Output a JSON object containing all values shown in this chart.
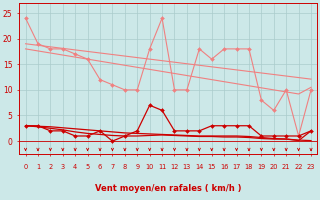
{
  "x": [
    0,
    1,
    2,
    3,
    4,
    5,
    6,
    7,
    8,
    9,
    10,
    11,
    12,
    13,
    14,
    15,
    16,
    17,
    18,
    19,
    20,
    21,
    22,
    23
  ],
  "series": [
    {
      "name": "rafales_max",
      "color": "#f08080",
      "linewidth": 0.8,
      "marker": "D",
      "markersize": 2.0,
      "values": [
        24,
        19,
        18,
        18,
        17,
        16,
        12,
        11,
        10,
        10,
        18,
        24,
        10,
        10,
        18,
        16,
        18,
        18,
        18,
        8,
        6,
        10,
        1,
        10
      ]
    },
    {
      "name": "rafales_trend1",
      "color": "#f08080",
      "linewidth": 0.8,
      "marker": null,
      "values": [
        19.0,
        18.7,
        18.4,
        18.1,
        17.8,
        17.5,
        17.2,
        16.9,
        16.6,
        16.3,
        16.0,
        15.7,
        15.4,
        15.1,
        14.8,
        14.5,
        14.2,
        13.9,
        13.6,
        13.3,
        13.0,
        12.7,
        12.4,
        12.1
      ]
    },
    {
      "name": "rafales_trend2",
      "color": "#f08080",
      "linewidth": 0.8,
      "marker": null,
      "values": [
        18.0,
        17.6,
        17.2,
        16.8,
        16.4,
        16.0,
        15.6,
        15.2,
        14.8,
        14.4,
        14.0,
        13.6,
        13.2,
        12.8,
        12.4,
        12.0,
        11.6,
        11.2,
        10.8,
        10.4,
        10.0,
        9.6,
        9.2,
        10.5
      ]
    },
    {
      "name": "vent_moyen_main",
      "color": "#cc0000",
      "linewidth": 0.9,
      "marker": "D",
      "markersize": 2.0,
      "values": [
        3.0,
        3.0,
        2.0,
        2.0,
        1.0,
        1.0,
        2.0,
        0.0,
        1.0,
        2.0,
        7.0,
        6.0,
        2.0,
        2.0,
        2.0,
        3.0,
        3.0,
        3.0,
        3.0,
        1.0,
        1.0,
        1.0,
        1.0,
        2.0
      ]
    },
    {
      "name": "vent_moyen_trend1",
      "color": "#cc0000",
      "linewidth": 0.9,
      "marker": null,
      "values": [
        3.0,
        2.9,
        2.8,
        2.6,
        2.4,
        2.2,
        2.0,
        1.8,
        1.6,
        1.5,
        1.4,
        1.3,
        1.2,
        1.1,
        1.0,
        1.0,
        1.0,
        1.0,
        0.9,
        0.7,
        0.5,
        0.4,
        0.2,
        0.1
      ]
    },
    {
      "name": "vent_moyen_trend2",
      "color": "#cc0000",
      "linewidth": 0.9,
      "marker": null,
      "values": [
        3.0,
        2.8,
        2.5,
        2.2,
        1.8,
        1.5,
        1.3,
        1.1,
        1.0,
        1.0,
        1.1,
        1.2,
        1.1,
        1.0,
        0.9,
        0.9,
        0.8,
        0.8,
        0.7,
        0.5,
        0.4,
        0.4,
        0.1,
        2.0
      ]
    }
  ],
  "xlabel": "Vent moyen/en rafales ( km/h )",
  "yticks": [
    0,
    5,
    10,
    15,
    20,
    25
  ],
  "ylim": [
    -2.5,
    27
  ],
  "xlim": [
    -0.5,
    23.5
  ],
  "bg_color": "#cce8e8",
  "grid_color": "#aacccc",
  "axis_color": "#cc0000",
  "label_color": "#cc0000",
  "arrow_color": "#cc0000",
  "xlabel_fontsize": 6.0,
  "xtick_fontsize": 4.8,
  "ytick_fontsize": 5.5
}
